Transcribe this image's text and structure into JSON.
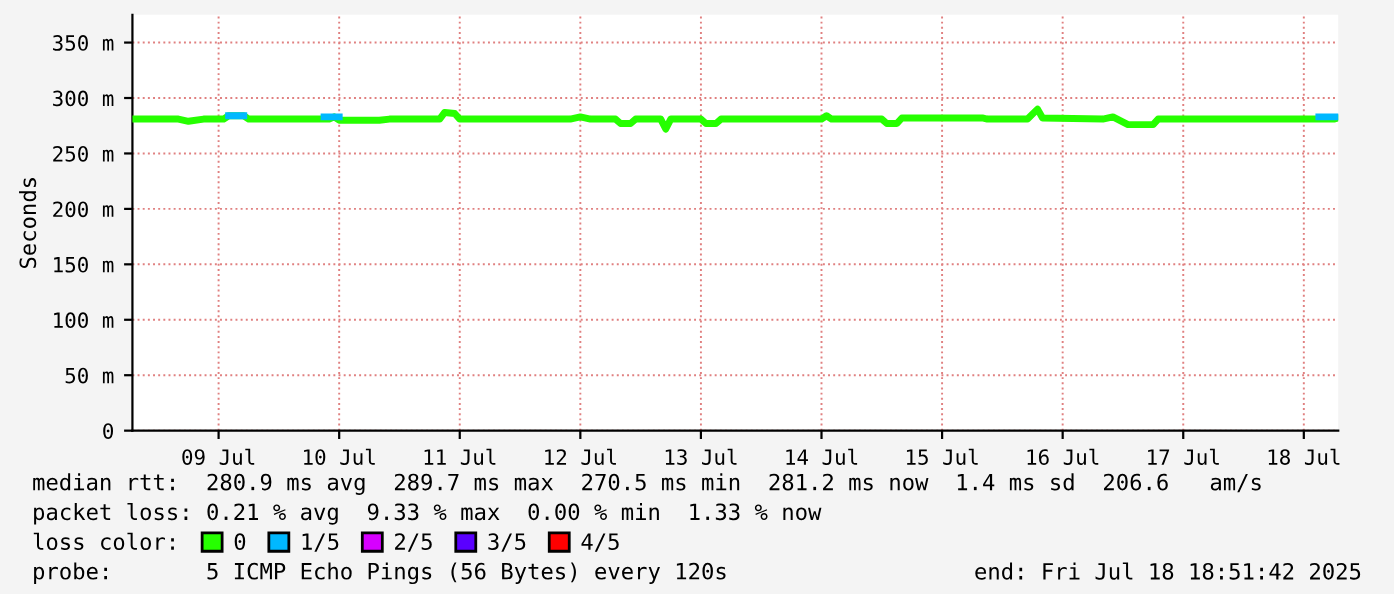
{
  "chart_data": {
    "type": "line",
    "ylabel": "Seconds",
    "legend_title": "loss color:",
    "legend": "bottom",
    "grid": true,
    "marker": "none",
    "line_style": "solid",
    "xlim": [
      "2025-07-08T18:51",
      "2025-07-18T18:51"
    ],
    "xticks": [
      {
        "value": "2025-07-09T12:00",
        "label": "09 Jul"
      },
      {
        "value": "2025-07-10T12:00",
        "label": "10 Jul"
      },
      {
        "value": "2025-07-11T12:00",
        "label": "11 Jul"
      },
      {
        "value": "2025-07-12T12:00",
        "label": "12 Jul"
      },
      {
        "value": "2025-07-13T12:00",
        "label": "13 Jul"
      },
      {
        "value": "2025-07-14T12:00",
        "label": "14 Jul"
      },
      {
        "value": "2025-07-15T12:00",
        "label": "15 Jul"
      },
      {
        "value": "2025-07-16T12:00",
        "label": "16 Jul"
      },
      {
        "value": "2025-07-17T12:00",
        "label": "17 Jul"
      },
      {
        "value": "2025-07-18T12:00",
        "label": "18 Jul"
      }
    ],
    "ylim": [
      0,
      375
    ],
    "yticks": [
      0,
      {
        "value": 50,
        "label": "50 m"
      },
      {
        "value": 100,
        "label": "100 m"
      },
      {
        "value": 150,
        "label": "150 m"
      },
      {
        "value": 200,
        "label": "200 m"
      },
      {
        "value": 250,
        "label": "250 m"
      },
      {
        "value": 300,
        "label": "300 m"
      },
      {
        "value": 350,
        "label": "350 m"
      }
    ],
    "series": [
      {
        "name": "0",
        "color": "#26ff00",
        "x": [
          "2025-07-08T19:00",
          "2025-07-09T04:00",
          "2025-07-09T06:00",
          "2025-07-09T09:00",
          "2025-07-09T13:00",
          "2025-07-09T14:00",
          "2025-07-09T17:00",
          "2025-07-09T18:00",
          "2025-07-10T10:00",
          "2025-07-10T11:00",
          "2025-07-10T12:00",
          "2025-07-10T20:00",
          "2025-07-10T22:00",
          "2025-07-11T08:00",
          "2025-07-11T09:00",
          "2025-07-11T11:00",
          "2025-07-11T12:00",
          "2025-07-12T10:00",
          "2025-07-12T12:00",
          "2025-07-12T14:00",
          "2025-07-12T19:00",
          "2025-07-12T20:00",
          "2025-07-12T22:00",
          "2025-07-12T23:00",
          "2025-07-13T04:00",
          "2025-07-13T05:00",
          "2025-07-13T06:00",
          "2025-07-13T12:00",
          "2025-07-13T13:00",
          "2025-07-13T15:00",
          "2025-07-13T16:00",
          "2025-07-14T12:00",
          "2025-07-14T13:00",
          "2025-07-14T14:00",
          "2025-07-15T00:00",
          "2025-07-15T01:00",
          "2025-07-15T03:00",
          "2025-07-15T04:00",
          "2025-07-15T20:00",
          "2025-07-15T21:00",
          "2025-07-16T05:00",
          "2025-07-16T07:00",
          "2025-07-16T08:00",
          "2025-07-16T20:00",
          "2025-07-16T22:00",
          "2025-07-17T01:00",
          "2025-07-17T06:00",
          "2025-07-17T07:00",
          "2025-07-18T18:00",
          "2025-07-18T18:51"
        ],
        "values": [
          281,
          281,
          279,
          281,
          281,
          284,
          284,
          281,
          281,
          283,
          280,
          280,
          281,
          281,
          287,
          286,
          281,
          281,
          283,
          281,
          281,
          277,
          277,
          281,
          281,
          272,
          281,
          281,
          277,
          277,
          281,
          281,
          284,
          281,
          281,
          277,
          277,
          282,
          282,
          281,
          281,
          290,
          282,
          281,
          283,
          276,
          276,
          281,
          281,
          282
        ]
      },
      {
        "name": "1/5",
        "color": "#00b8ff",
        "x": [
          "2025-07-09T14:00",
          "2025-07-09T17:00",
          "2025-07-09T18:00",
          "2025-07-10T09:00",
          "2025-07-10T12:00",
          "2025-07-10T13:00",
          "2025-07-18T15:00",
          "2025-07-18T18:51"
        ],
        "values": [
          284,
          284,
          null,
          283,
          283,
          null,
          283,
          283
        ]
      },
      {
        "name": "2/5",
        "color": "#d600ff"
      },
      {
        "name": "3/5",
        "color": "#5a00ff"
      },
      {
        "name": "4/5",
        "color": "#ff0000"
      }
    ],
    "annotations": [
      "median rtt:  280.9 ms avg  289.7 ms max  270.5 ms min  281.2 ms now  1.4 ms sd  206.6   am/s",
      "packet loss: 0.21 % avg  9.33 % max  0.00 % min  1.33 % now",
      "probe:       5 ICMP Echo Pings (56 Bytes) every 120s",
      "end: Fri Jul 18 18:51:42 2025"
    ]
  }
}
